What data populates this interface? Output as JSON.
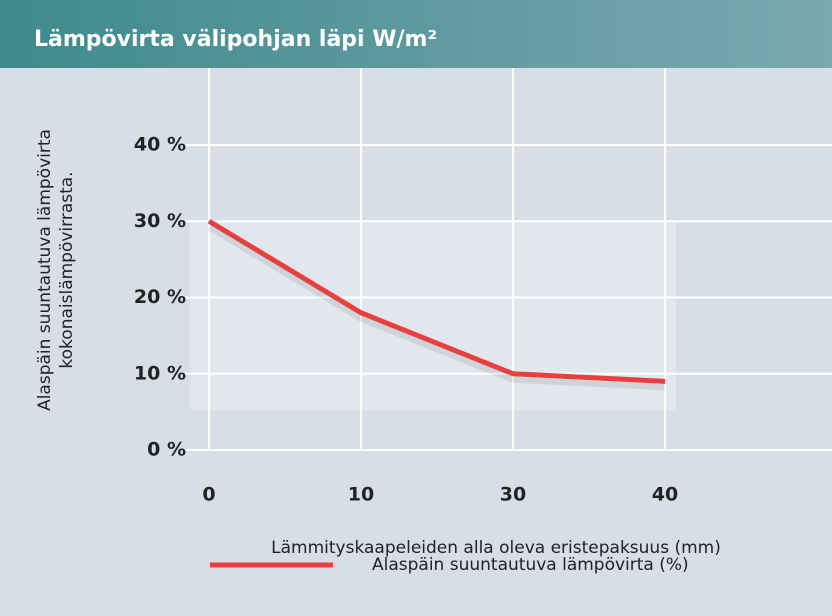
{
  "chart_data": {
    "type": "line",
    "title": "Lämpövirta välipohjan läpi  W/m²",
    "y_label_lines": [
      "Alaspäin suuntautuva lämpövirta",
      "kokonaislämpövirrasta."
    ],
    "x_label": "Lämmityskaapeleiden alla oleva eristepaksuus (mm)",
    "categories": [
      "0",
      "10",
      "30",
      "40"
    ],
    "series": [
      {
        "name": "Alaspäin suuntautuva lämpövirta (%)",
        "color": "#e8403f",
        "values": [
          30,
          18,
          10,
          9
        ]
      }
    ],
    "ylim": [
      0,
      40
    ],
    "yticks": [
      {
        "value": 0,
        "label": "0 %"
      },
      {
        "value": 10,
        "label": "10 %"
      },
      {
        "value": 20,
        "label": "20 %"
      },
      {
        "value": 30,
        "label": "30 %"
      },
      {
        "value": 40,
        "label": "40 %"
      }
    ],
    "grid": true
  }
}
